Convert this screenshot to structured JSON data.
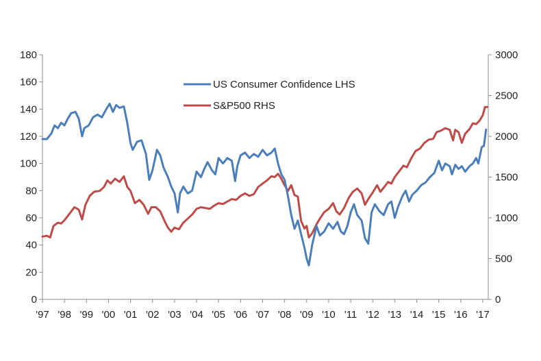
{
  "chart_data": {
    "type": "line",
    "title": "",
    "xlabel": "",
    "ylabel_left": "",
    "ylabel_right": "",
    "x_ticks": [
      "'97",
      "'98",
      "'99",
      "'00",
      "'01",
      "'02",
      "'03",
      "'04",
      "'05",
      "'06",
      "'07",
      "'08",
      "'09",
      "'10",
      "'11",
      "'12",
      "'13",
      "'14",
      "'15",
      "'16",
      "'17"
    ],
    "xlim": [
      1997.0,
      2017.25
    ],
    "y_left": {
      "lim": [
        0,
        180
      ],
      "ticks": [
        0,
        20,
        40,
        60,
        80,
        100,
        120,
        140,
        160,
        180
      ]
    },
    "y_right": {
      "lim": [
        0,
        3000
      ],
      "ticks": [
        0,
        500,
        1000,
        1500,
        2000,
        2500,
        3000
      ]
    },
    "grid": false,
    "legend_position": "top-center",
    "series": [
      {
        "name": "US Consumer Confidence LHS",
        "axis": "left",
        "color": "#4a7ebb",
        "points": [
          [
            1997.0,
            118
          ],
          [
            1997.2,
            118
          ],
          [
            1997.4,
            122
          ],
          [
            1997.55,
            128
          ],
          [
            1997.7,
            126
          ],
          [
            1997.85,
            130
          ],
          [
            1998.0,
            128
          ],
          [
            1998.15,
            133
          ],
          [
            1998.3,
            137
          ],
          [
            1998.5,
            138
          ],
          [
            1998.65,
            133
          ],
          [
            1998.8,
            120
          ],
          [
            1998.9,
            126
          ],
          [
            1999.1,
            128
          ],
          [
            1999.3,
            134
          ],
          [
            1999.5,
            136
          ],
          [
            1999.7,
            134
          ],
          [
            1999.9,
            140
          ],
          [
            2000.05,
            144
          ],
          [
            2000.2,
            138
          ],
          [
            2000.35,
            143
          ],
          [
            2000.5,
            141
          ],
          [
            2000.7,
            142
          ],
          [
            2000.85,
            130
          ],
          [
            2001.0,
            115
          ],
          [
            2001.1,
            110
          ],
          [
            2001.3,
            116
          ],
          [
            2001.5,
            117
          ],
          [
            2001.7,
            107
          ],
          [
            2001.85,
            88
          ],
          [
            2002.0,
            95
          ],
          [
            2002.2,
            110
          ],
          [
            2002.35,
            106
          ],
          [
            2002.5,
            97
          ],
          [
            2002.7,
            90
          ],
          [
            2002.85,
            83
          ],
          [
            2003.0,
            78
          ],
          [
            2003.15,
            64
          ],
          [
            2003.25,
            78
          ],
          [
            2003.4,
            83
          ],
          [
            2003.6,
            78
          ],
          [
            2003.8,
            80
          ],
          [
            2004.0,
            94
          ],
          [
            2004.2,
            90
          ],
          [
            2004.35,
            96
          ],
          [
            2004.5,
            101
          ],
          [
            2004.7,
            95
          ],
          [
            2004.85,
            92
          ],
          [
            2005.0,
            104
          ],
          [
            2005.2,
            100
          ],
          [
            2005.4,
            104
          ],
          [
            2005.6,
            102
          ],
          [
            2005.75,
            87
          ],
          [
            2005.85,
            98
          ],
          [
            2006.0,
            106
          ],
          [
            2006.2,
            108
          ],
          [
            2006.4,
            104
          ],
          [
            2006.6,
            107
          ],
          [
            2006.8,
            105
          ],
          [
            2007.0,
            110
          ],
          [
            2007.2,
            106
          ],
          [
            2007.4,
            108
          ],
          [
            2007.55,
            111
          ],
          [
            2007.7,
            100
          ],
          [
            2007.85,
            92
          ],
          [
            2008.0,
            88
          ],
          [
            2008.15,
            76
          ],
          [
            2008.3,
            62
          ],
          [
            2008.45,
            52
          ],
          [
            2008.6,
            58
          ],
          [
            2008.75,
            48
          ],
          [
            2008.9,
            38
          ],
          [
            2009.0,
            30
          ],
          [
            2009.1,
            25
          ],
          [
            2009.25,
            40
          ],
          [
            2009.45,
            54
          ],
          [
            2009.6,
            47
          ],
          [
            2009.8,
            50
          ],
          [
            2010.0,
            56
          ],
          [
            2010.2,
            52
          ],
          [
            2010.4,
            57
          ],
          [
            2010.55,
            50
          ],
          [
            2010.7,
            48
          ],
          [
            2010.85,
            54
          ],
          [
            2011.0,
            64
          ],
          [
            2011.15,
            70
          ],
          [
            2011.3,
            62
          ],
          [
            2011.5,
            58
          ],
          [
            2011.65,
            45
          ],
          [
            2011.8,
            41
          ],
          [
            2011.95,
            64
          ],
          [
            2012.1,
            70
          ],
          [
            2012.3,
            65
          ],
          [
            2012.5,
            62
          ],
          [
            2012.7,
            70
          ],
          [
            2012.85,
            72
          ],
          [
            2013.0,
            60
          ],
          [
            2013.15,
            68
          ],
          [
            2013.35,
            76
          ],
          [
            2013.5,
            80
          ],
          [
            2013.65,
            72
          ],
          [
            2013.8,
            77
          ],
          [
            2014.0,
            80
          ],
          [
            2014.2,
            84
          ],
          [
            2014.4,
            86
          ],
          [
            2014.6,
            90
          ],
          [
            2014.8,
            93
          ],
          [
            2015.0,
            102
          ],
          [
            2015.15,
            95
          ],
          [
            2015.3,
            100
          ],
          [
            2015.5,
            98
          ],
          [
            2015.6,
            92
          ],
          [
            2015.75,
            99
          ],
          [
            2015.9,
            96
          ],
          [
            2016.05,
            98
          ],
          [
            2016.2,
            94
          ],
          [
            2016.4,
            98
          ],
          [
            2016.55,
            100
          ],
          [
            2016.7,
            104
          ],
          [
            2016.8,
            100
          ],
          [
            2016.95,
            112
          ],
          [
            2017.05,
            113
          ],
          [
            2017.15,
            125
          ]
        ]
      },
      {
        "name": "S&P500 RHS",
        "axis": "right",
        "color": "#be4b48",
        "points": [
          [
            1997.0,
            770
          ],
          [
            1997.2,
            780
          ],
          [
            1997.35,
            760
          ],
          [
            1997.5,
            900
          ],
          [
            1997.7,
            940
          ],
          [
            1997.85,
            930
          ],
          [
            1998.0,
            970
          ],
          [
            1998.2,
            1040
          ],
          [
            1998.45,
            1130
          ],
          [
            1998.65,
            1100
          ],
          [
            1998.8,
            980
          ],
          [
            1998.95,
            1160
          ],
          [
            1999.15,
            1270
          ],
          [
            1999.35,
            1320
          ],
          [
            1999.6,
            1330
          ],
          [
            1999.8,
            1380
          ],
          [
            1999.95,
            1460
          ],
          [
            2000.1,
            1420
          ],
          [
            2000.3,
            1480
          ],
          [
            2000.5,
            1440
          ],
          [
            2000.7,
            1510
          ],
          [
            2000.85,
            1380
          ],
          [
            2001.0,
            1330
          ],
          [
            2001.2,
            1180
          ],
          [
            2001.4,
            1220
          ],
          [
            2001.6,
            1160
          ],
          [
            2001.8,
            1050
          ],
          [
            2001.95,
            1130
          ],
          [
            2002.15,
            1130
          ],
          [
            2002.35,
            1080
          ],
          [
            2002.55,
            960
          ],
          [
            2002.7,
            880
          ],
          [
            2002.85,
            830
          ],
          [
            2003.0,
            880
          ],
          [
            2003.2,
            860
          ],
          [
            2003.4,
            940
          ],
          [
            2003.6,
            990
          ],
          [
            2003.8,
            1040
          ],
          [
            2004.0,
            1110
          ],
          [
            2004.2,
            1130
          ],
          [
            2004.4,
            1120
          ],
          [
            2004.6,
            1110
          ],
          [
            2004.8,
            1150
          ],
          [
            2005.0,
            1180
          ],
          [
            2005.2,
            1170
          ],
          [
            2005.4,
            1200
          ],
          [
            2005.6,
            1230
          ],
          [
            2005.8,
            1220
          ],
          [
            2006.0,
            1270
          ],
          [
            2006.2,
            1300
          ],
          [
            2006.4,
            1270
          ],
          [
            2006.6,
            1290
          ],
          [
            2006.8,
            1380
          ],
          [
            2007.0,
            1420
          ],
          [
            2007.2,
            1460
          ],
          [
            2007.4,
            1510
          ],
          [
            2007.55,
            1500
          ],
          [
            2007.7,
            1540
          ],
          [
            2007.85,
            1480
          ],
          [
            2008.0,
            1400
          ],
          [
            2008.15,
            1330
          ],
          [
            2008.3,
            1400
          ],
          [
            2008.45,
            1280
          ],
          [
            2008.6,
            1260
          ],
          [
            2008.75,
            960
          ],
          [
            2008.9,
            870
          ],
          [
            2009.0,
            900
          ],
          [
            2009.1,
            760
          ],
          [
            2009.25,
            810
          ],
          [
            2009.45,
            920
          ],
          [
            2009.6,
            990
          ],
          [
            2009.8,
            1070
          ],
          [
            2010.0,
            1110
          ],
          [
            2010.2,
            1180
          ],
          [
            2010.35,
            1080
          ],
          [
            2010.5,
            1040
          ],
          [
            2010.7,
            1120
          ],
          [
            2010.9,
            1240
          ],
          [
            2011.1,
            1320
          ],
          [
            2011.3,
            1360
          ],
          [
            2011.5,
            1300
          ],
          [
            2011.65,
            1160
          ],
          [
            2011.8,
            1230
          ],
          [
            2012.0,
            1310
          ],
          [
            2012.2,
            1400
          ],
          [
            2012.35,
            1320
          ],
          [
            2012.5,
            1370
          ],
          [
            2012.7,
            1440
          ],
          [
            2012.85,
            1420
          ],
          [
            2013.0,
            1500
          ],
          [
            2013.2,
            1570
          ],
          [
            2013.4,
            1640
          ],
          [
            2013.55,
            1620
          ],
          [
            2013.75,
            1730
          ],
          [
            2013.95,
            1820
          ],
          [
            2014.15,
            1850
          ],
          [
            2014.35,
            1920
          ],
          [
            2014.55,
            1960
          ],
          [
            2014.75,
            1970
          ],
          [
            2014.9,
            2050
          ],
          [
            2015.1,
            2070
          ],
          [
            2015.3,
            2100
          ],
          [
            2015.5,
            2080
          ],
          [
            2015.65,
            1950
          ],
          [
            2015.75,
            2080
          ],
          [
            2015.9,
            2050
          ],
          [
            2016.05,
            1920
          ],
          [
            2016.2,
            2030
          ],
          [
            2016.4,
            2090
          ],
          [
            2016.55,
            2160
          ],
          [
            2016.7,
            2150
          ],
          [
            2016.85,
            2190
          ],
          [
            2017.0,
            2260
          ],
          [
            2017.1,
            2360
          ],
          [
            2017.2,
            2360
          ]
        ]
      }
    ]
  }
}
